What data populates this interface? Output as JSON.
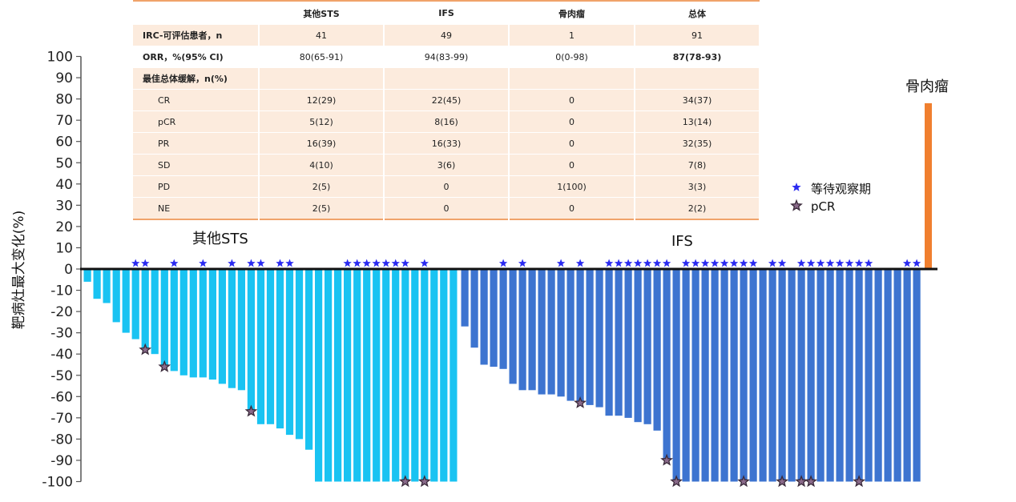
{
  "table": {
    "columns": [
      "",
      "其他STS",
      "IFS",
      "骨肉瘤",
      "总体"
    ],
    "rows": [
      {
        "label": "IRC-可评估患者，n",
        "values": [
          "41",
          "49",
          "1",
          "91"
        ]
      },
      {
        "label": "ORR，%(95% CI)",
        "values": [
          "80(65-91)",
          "94(83-99)",
          "0(0-98)",
          "87(78-93)"
        ]
      },
      {
        "label": "最佳总体缓解，n(%)",
        "values": [
          "",
          "",
          "",
          ""
        ]
      },
      {
        "label": "CR",
        "values": [
          "12(29)",
          "22(45)",
          "0",
          "34(37)"
        ]
      },
      {
        "label": "pCR",
        "values": [
          "5(12)",
          "8(16)",
          "0",
          "13(14)"
        ]
      },
      {
        "label": "PR",
        "values": [
          "16(39)",
          "16(33)",
          "0",
          "32(35)"
        ]
      },
      {
        "label": "SD",
        "values": [
          "4(10)",
          "3(6)",
          "0",
          "7(8)"
        ]
      },
      {
        "label": "PD",
        "values": [
          "2(5)",
          "0",
          "1(100)",
          "3(3)"
        ]
      },
      {
        "label": "NE",
        "values": [
          "2(5)",
          "0",
          "0",
          "2(2)"
        ]
      }
    ]
  },
  "chart_data": {
    "type": "bar",
    "ylabel": "靶病灶最大变化(%)",
    "ylim": [
      -100,
      100
    ],
    "yticks": [
      100,
      90,
      80,
      70,
      60,
      50,
      40,
      30,
      20,
      10,
      0,
      -10,
      -20,
      -30,
      -40,
      -50,
      -60,
      -70,
      -80,
      -90,
      -100
    ],
    "group_labels": [
      "其他STS",
      "IFS",
      "骨肉瘤"
    ],
    "series": [
      {
        "name": "其他STS",
        "color": "#19c3f2",
        "values": [
          -6,
          -14,
          -16,
          -25,
          -30,
          -33,
          -38,
          -40,
          -46,
          -48,
          -50,
          -51,
          -51,
          -52,
          -54,
          -56,
          -57,
          -67,
          -73,
          -73,
          -75,
          -78,
          -80,
          -85,
          -100,
          -100,
          -100,
          -100,
          -100,
          -100,
          -100,
          -100,
          -100,
          -100,
          -100,
          -100,
          -100,
          -100,
          -100
        ]
      },
      {
        "name": "IFS",
        "color": "#3d74d0",
        "values": [
          -27,
          -37,
          -45,
          -46,
          -47,
          -54,
          -57,
          -57,
          -59,
          -59,
          -60,
          -62,
          -63,
          -64,
          -65,
          -69,
          -69,
          -70,
          -72,
          -73,
          -76,
          -90,
          -100,
          -100,
          -100,
          -100,
          -100,
          -100,
          -100,
          -100,
          -100,
          -100,
          -100,
          -100,
          -100,
          -100,
          -100,
          -100,
          -100,
          -100,
          -100,
          -100,
          -100,
          -100,
          -100,
          -100,
          -100,
          -100
        ]
      },
      {
        "name": "骨肉瘤",
        "color": "#f07f2f",
        "values": [
          78
        ]
      }
    ],
    "legend": {
      "position": "right",
      "items": [
        {
          "label": "等待观察期",
          "marker": "blue-star"
        },
        {
          "label": "pCR",
          "marker": "outlined-star"
        }
      ]
    },
    "waiting_bars": {
      "其他STS": [
        5,
        6,
        9,
        12,
        15,
        17,
        18,
        20,
        21,
        27,
        28,
        29,
        30,
        31,
        32,
        33,
        35
      ],
      "IFS": [
        4,
        6,
        10,
        12,
        15,
        16,
        17,
        18,
        19,
        20,
        21,
        23,
        24,
        25,
        26,
        27,
        28,
        29,
        30,
        32,
        33,
        35,
        36,
        37,
        38,
        39,
        40,
        41,
        42,
        46,
        47
      ]
    },
    "pcr_bars": {
      "其他STS": [
        6,
        8,
        17,
        33,
        35
      ],
      "IFS": [
        12,
        21,
        22,
        29,
        33,
        35,
        36,
        41
      ]
    }
  }
}
